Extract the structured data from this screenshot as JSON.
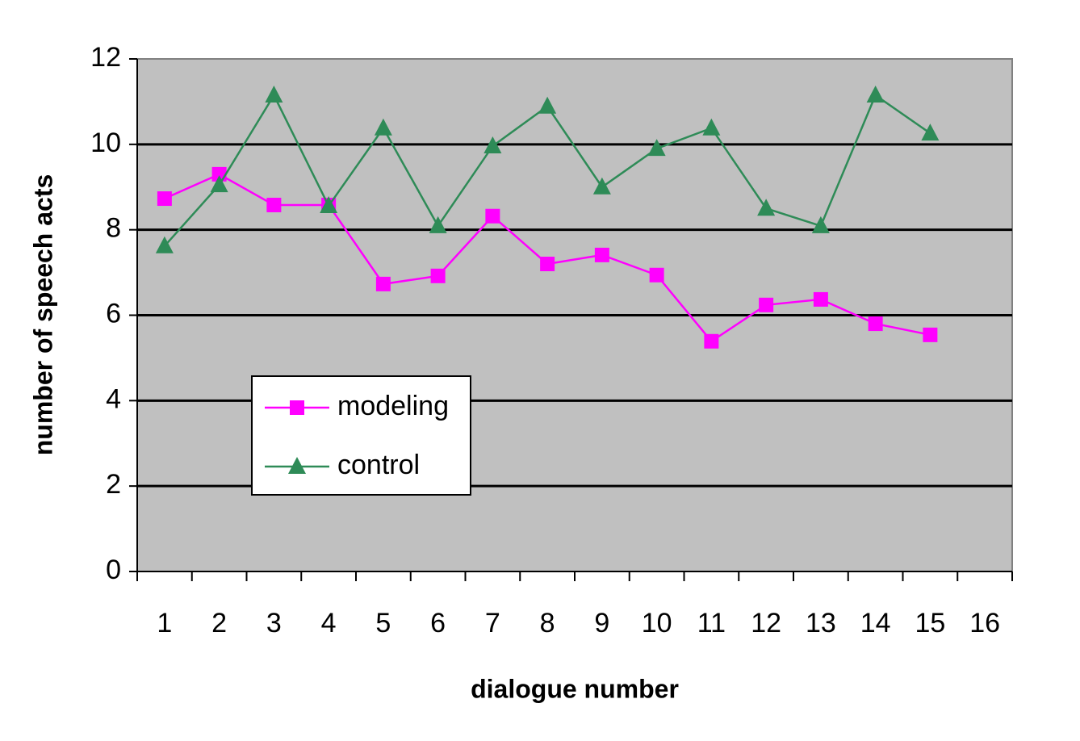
{
  "chart_data": {
    "type": "line",
    "x_label": "dialogue number",
    "y_label": "number of speech acts",
    "categories": [
      "1",
      "2",
      "3",
      "4",
      "5",
      "6",
      "7",
      "8",
      "9",
      "10",
      "11",
      "12",
      "13",
      "14",
      "15",
      "16"
    ],
    "series": [
      {
        "name": "modeling",
        "color": "#ff00ff",
        "marker": "square",
        "values": [
          8.73,
          9.3,
          8.58,
          8.58,
          6.73,
          6.92,
          8.32,
          7.2,
          7.41,
          6.94,
          5.39,
          6.24,
          6.37,
          5.8,
          5.54,
          null
        ]
      },
      {
        "name": "control",
        "color": "#2e8b57",
        "marker": "triangle",
        "values": [
          7.62,
          9.05,
          11.15,
          8.56,
          10.38,
          8.09,
          9.96,
          10.89,
          9.0,
          9.9,
          10.38,
          8.5,
          8.09,
          11.15,
          10.26,
          null
        ]
      }
    ],
    "ylim": [
      0,
      12
    ],
    "yticks": [
      0,
      2,
      4,
      6,
      8,
      10,
      12
    ],
    "grid": true,
    "background": "#c0c0c0"
  }
}
